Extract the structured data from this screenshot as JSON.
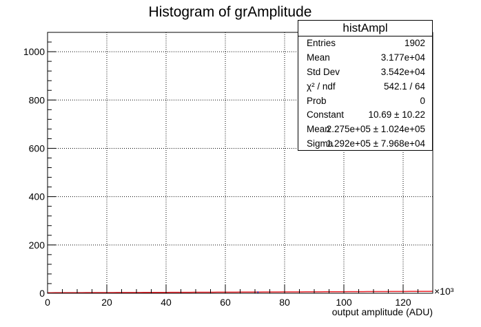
{
  "chart_data": {
    "type": "bar",
    "title": "Histogram of grAmplitude",
    "xlabel": "output amplitude (ADU)",
    "ylabel": "",
    "x_multiplier": "×10³",
    "xlim": [
      0,
      130
    ],
    "ylim": [
      0,
      1080
    ],
    "x_ticks": [
      0,
      20,
      40,
      60,
      80,
      100,
      120
    ],
    "y_ticks": [
      0,
      200,
      400,
      600,
      800,
      1000
    ],
    "grid": true,
    "series": [
      {
        "values": [
          [
            0,
            1
          ],
          [
            71,
            8
          ]
        ]
      }
    ],
    "fit": {
      "type": "gaussian",
      "color": "#e8232a",
      "constant": 10.69,
      "mean": 227.5,
      "sigma": 129.2
    }
  },
  "stats": {
    "title": "histAmpl",
    "rows": [
      {
        "key": "Entries",
        "value": "1902"
      },
      {
        "key": "Mean",
        "value": "3.177e+04"
      },
      {
        "key": "Std Dev",
        "value": "3.542e+04"
      },
      {
        "key": "χ² / ndf",
        "value": "542.1 / 64"
      },
      {
        "key": "Prob",
        "value": "0"
      },
      {
        "key": "Constant",
        "value": "10.69 ± 10.22"
      },
      {
        "key": "Mean",
        "value": "2.275e+05 ± 1.024e+05"
      },
      {
        "key": "Sigma",
        "value": "1.292e+05 ± 7.968e+04"
      }
    ]
  },
  "colors": {
    "histogram": "#1f3fd6",
    "fit": "#e8232a",
    "axis": "#000000"
  }
}
